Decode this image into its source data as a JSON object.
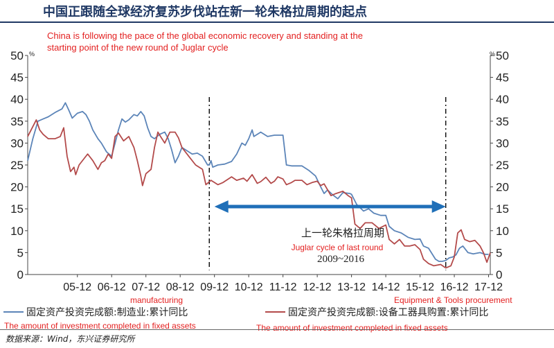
{
  "title": "中国正跟随全球经济复苏步伐站在新一轮朱格拉周期的起点",
  "subtitle_line1": "China is following the pace of the global economic recovery and standing at the",
  "subtitle_line2": "starting point of the new round of Juglar cycle",
  "source": "数据来源：Wind，东兴证券研究所",
  "colors": {
    "blue": "#5b84b8",
    "red": "#b34a4a",
    "arrow": "#1f6fb8",
    "annotation": "#e32020"
  },
  "chart_data": {
    "type": "line",
    "y_unit": "%",
    "ylim": [
      0,
      50
    ],
    "yticks": [
      0,
      5,
      10,
      15,
      20,
      25,
      30,
      35,
      40,
      45,
      50
    ],
    "xlim": [
      2004.5,
      2018.0
    ],
    "xticks": [
      {
        "label": "05-12",
        "x": 2005.95
      },
      {
        "label": "06-12",
        "x": 2006.95
      },
      {
        "label": "07-12",
        "x": 2007.95
      },
      {
        "label": "08-12",
        "x": 2008.95
      },
      {
        "label": "09-12",
        "x": 2009.95
      },
      {
        "label": "10-12",
        "x": 2010.95
      },
      {
        "label": "11-12",
        "x": 2011.95
      },
      {
        "label": "12-12",
        "x": 2012.95
      },
      {
        "label": "13-12",
        "x": 2013.95
      },
      {
        "label": "14-12",
        "x": 2014.95
      },
      {
        "label": "15-12",
        "x": 2015.95
      },
      {
        "label": "16-12",
        "x": 2016.95
      },
      {
        "label": "17-12",
        "x": 2017.95
      }
    ],
    "vlines": [
      2009.8,
      2016.7
    ],
    "arrow_range": [
      2009.95,
      2016.7
    ],
    "arrow_y": 15.5,
    "cycle_label_cn": "上一轮朱格拉周期",
    "cycle_label_en": "Juglar cycle of last round",
    "cycle_years": "2009~2016",
    "annotation_left": "manufacturing",
    "annotation_right": "Equipment & Tools procurement",
    "series": [
      {
        "name": "固定资产投资完成额:制造业:累计同比",
        "translation": "The amount of investment completed in fixed assets",
        "color": "#5b84b8",
        "points": [
          [
            2004.5,
            26
          ],
          [
            2004.65,
            31
          ],
          [
            2004.8,
            35
          ],
          [
            2004.95,
            35.5
          ],
          [
            2005.1,
            36
          ],
          [
            2005.3,
            37
          ],
          [
            2005.5,
            37.8
          ],
          [
            2005.6,
            39.2
          ],
          [
            2005.7,
            37.5
          ],
          [
            2005.8,
            35.7
          ],
          [
            2005.95,
            36.8
          ],
          [
            2006.1,
            37.2
          ],
          [
            2006.2,
            36.5
          ],
          [
            2006.3,
            35
          ],
          [
            2006.4,
            33
          ],
          [
            2006.55,
            31
          ],
          [
            2006.65,
            30
          ],
          [
            2006.8,
            28
          ],
          [
            2006.95,
            27
          ],
          [
            2007.05,
            30
          ],
          [
            2007.15,
            33
          ],
          [
            2007.25,
            35.5
          ],
          [
            2007.35,
            34.8
          ],
          [
            2007.45,
            35.3
          ],
          [
            2007.6,
            36.5
          ],
          [
            2007.7,
            36.2
          ],
          [
            2007.8,
            37.2
          ],
          [
            2007.9,
            36.2
          ],
          [
            2008.0,
            33.5
          ],
          [
            2008.1,
            31.5
          ],
          [
            2008.2,
            31
          ],
          [
            2008.35,
            32
          ],
          [
            2008.5,
            32.5
          ],
          [
            2008.6,
            31
          ],
          [
            2008.7,
            28.5
          ],
          [
            2008.8,
            25.5
          ],
          [
            2008.9,
            27
          ],
          [
            2009.0,
            29
          ],
          [
            2009.1,
            28.5
          ],
          [
            2009.3,
            27.5
          ],
          [
            2009.45,
            27.7
          ],
          [
            2009.6,
            27
          ],
          [
            2009.75,
            25
          ],
          [
            2009.8,
            25
          ],
          [
            2009.85,
            26
          ],
          [
            2009.9,
            24.5
          ],
          [
            2010.05,
            25
          ],
          [
            2010.25,
            25.2
          ],
          [
            2010.45,
            25.8
          ],
          [
            2010.6,
            27.5
          ],
          [
            2010.75,
            30
          ],
          [
            2010.85,
            29.5
          ],
          [
            2010.95,
            31
          ],
          [
            2011.05,
            33
          ],
          [
            2011.1,
            31.5
          ],
          [
            2011.3,
            32.5
          ],
          [
            2011.5,
            31.5
          ],
          [
            2011.7,
            31.8
          ],
          [
            2011.95,
            31.8
          ],
          [
            2012.05,
            25
          ],
          [
            2012.2,
            24.8
          ],
          [
            2012.5,
            24.8
          ],
          [
            2012.7,
            23.8
          ],
          [
            2012.9,
            22.5
          ],
          [
            2013.05,
            20
          ],
          [
            2013.15,
            18.5
          ],
          [
            2013.25,
            19.3
          ],
          [
            2013.4,
            18.2
          ],
          [
            2013.55,
            17.3
          ],
          [
            2013.7,
            18.7
          ],
          [
            2013.9,
            18.5
          ],
          [
            2013.95,
            18.3
          ],
          [
            2014.1,
            16
          ],
          [
            2014.3,
            14.5
          ],
          [
            2014.45,
            15
          ],
          [
            2014.6,
            14
          ],
          [
            2014.8,
            13.5
          ],
          [
            2014.95,
            13.5
          ],
          [
            2015.05,
            11
          ],
          [
            2015.2,
            10
          ],
          [
            2015.4,
            9.5
          ],
          [
            2015.6,
            8.5
          ],
          [
            2015.8,
            8
          ],
          [
            2015.95,
            8.1
          ],
          [
            2016.05,
            6.5
          ],
          [
            2016.2,
            6
          ],
          [
            2016.4,
            3.5
          ],
          [
            2016.5,
            3
          ],
          [
            2016.6,
            3
          ],
          [
            2016.7,
            3.2
          ],
          [
            2016.8,
            3.8
          ],
          [
            2016.9,
            4
          ],
          [
            2017.0,
            4.5
          ],
          [
            2017.1,
            6
          ],
          [
            2017.2,
            6.5
          ],
          [
            2017.35,
            5
          ],
          [
            2017.5,
            4.7
          ],
          [
            2017.7,
            5
          ],
          [
            2017.85,
            4.6
          ],
          [
            2017.95,
            4.6
          ]
        ]
      },
      {
        "name": "固定资产投资完成额:设备工器具购置:累计同比",
        "translation": "The amount of investment completed in fixed assets",
        "color": "#b34a4a",
        "points": [
          [
            2004.5,
            31.5
          ],
          [
            2004.6,
            33
          ],
          [
            2004.75,
            35.3
          ],
          [
            2004.85,
            33
          ],
          [
            2004.95,
            32
          ],
          [
            2005.1,
            31
          ],
          [
            2005.3,
            31
          ],
          [
            2005.45,
            31.5
          ],
          [
            2005.55,
            33.5
          ],
          [
            2005.65,
            27
          ],
          [
            2005.75,
            23.5
          ],
          [
            2005.85,
            24.5
          ],
          [
            2005.9,
            22.8
          ],
          [
            2006.0,
            25
          ],
          [
            2006.15,
            26.5
          ],
          [
            2006.25,
            27.5
          ],
          [
            2006.4,
            26
          ],
          [
            2006.55,
            24
          ],
          [
            2006.65,
            25.5
          ],
          [
            2006.75,
            26
          ],
          [
            2006.85,
            27.5
          ],
          [
            2006.95,
            26.5
          ],
          [
            2007.05,
            31.5
          ],
          [
            2007.15,
            32.3
          ],
          [
            2007.3,
            30.5
          ],
          [
            2007.45,
            31.5
          ],
          [
            2007.6,
            29
          ],
          [
            2007.7,
            26
          ],
          [
            2007.8,
            22.5
          ],
          [
            2007.85,
            20.3
          ],
          [
            2007.95,
            23
          ],
          [
            2008.1,
            24
          ],
          [
            2008.2,
            29
          ],
          [
            2008.3,
            32.5
          ],
          [
            2008.4,
            31.2
          ],
          [
            2008.5,
            30
          ],
          [
            2008.65,
            32.5
          ],
          [
            2008.8,
            32.5
          ],
          [
            2008.9,
            31.2
          ],
          [
            2009.0,
            29
          ],
          [
            2009.2,
            27
          ],
          [
            2009.4,
            25
          ],
          [
            2009.6,
            24
          ],
          [
            2009.7,
            20.5
          ],
          [
            2009.85,
            21.5
          ],
          [
            2009.95,
            21
          ],
          [
            2010.05,
            20.5
          ],
          [
            2010.2,
            21
          ],
          [
            2010.45,
            22.3
          ],
          [
            2010.6,
            21.5
          ],
          [
            2010.8,
            22
          ],
          [
            2010.9,
            21.3
          ],
          [
            2011.05,
            22.8
          ],
          [
            2011.2,
            20.8
          ],
          [
            2011.3,
            21.2
          ],
          [
            2011.45,
            22.2
          ],
          [
            2011.6,
            20.8
          ],
          [
            2011.7,
            21.3
          ],
          [
            2011.8,
            22.3
          ],
          [
            2011.95,
            21.8
          ],
          [
            2012.05,
            20.5
          ],
          [
            2012.2,
            21
          ],
          [
            2012.3,
            21.5
          ],
          [
            2012.5,
            21.5
          ],
          [
            2012.65,
            20.5
          ],
          [
            2012.8,
            21
          ],
          [
            2012.95,
            21.3
          ],
          [
            2013.05,
            20.3
          ],
          [
            2013.15,
            20.7
          ],
          [
            2013.35,
            18
          ],
          [
            2013.5,
            18.5
          ],
          [
            2013.7,
            19
          ],
          [
            2013.85,
            18
          ],
          [
            2013.95,
            17.5
          ],
          [
            2014.05,
            11.5
          ],
          [
            2014.2,
            10.5
          ],
          [
            2014.35,
            11.8
          ],
          [
            2014.55,
            11.8
          ],
          [
            2014.75,
            10.5
          ],
          [
            2014.95,
            11.3
          ],
          [
            2015.05,
            8
          ],
          [
            2015.2,
            7
          ],
          [
            2015.35,
            8
          ],
          [
            2015.5,
            6.5
          ],
          [
            2015.65,
            6.5
          ],
          [
            2015.8,
            6.8
          ],
          [
            2015.95,
            5.7
          ],
          [
            2016.05,
            3.5
          ],
          [
            2016.2,
            2.5
          ],
          [
            2016.35,
            2
          ],
          [
            2016.55,
            2.3
          ],
          [
            2016.7,
            1.5
          ],
          [
            2016.85,
            2
          ],
          [
            2016.95,
            4
          ],
          [
            2017.05,
            9.5
          ],
          [
            2017.15,
            10.2
          ],
          [
            2017.25,
            8
          ],
          [
            2017.4,
            7.5
          ],
          [
            2017.55,
            7.8
          ],
          [
            2017.7,
            6.5
          ],
          [
            2017.8,
            5
          ],
          [
            2017.9,
            2.8
          ],
          [
            2018.0,
            5
          ]
        ]
      }
    ]
  }
}
